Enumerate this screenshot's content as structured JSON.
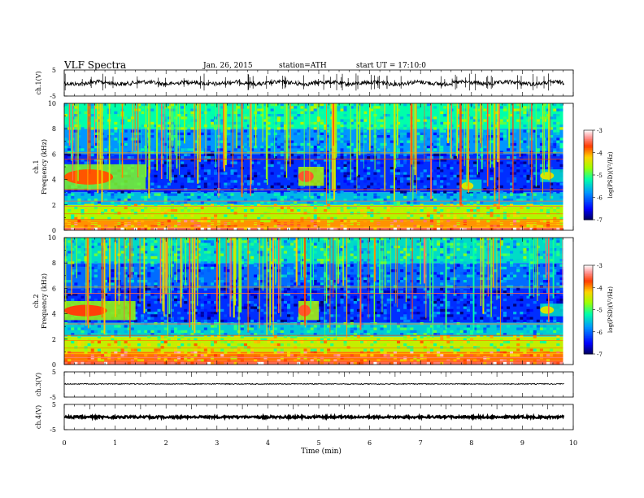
{
  "header": {
    "title": "VLF Spectra",
    "date": "Jan. 26, 2015",
    "station": "station=ATH",
    "start": "start UT = 17:10:0"
  },
  "colorbar": {
    "label": "log(PSD)(V²/Hz)",
    "ticks": [
      "-3",
      "-4",
      "-5",
      "-6",
      "-7"
    ],
    "colors": [
      "#000060",
      "#0000ff",
      "#00a0ff",
      "#00ffa0",
      "#a0ff00",
      "#ffd000",
      "#ff4000",
      "#ff9090",
      "#ffffff"
    ]
  },
  "chart_data": [
    {
      "type": "line",
      "panel": "ch1-waveform",
      "ylabel": "ch.1(V)",
      "yticks": [
        "5",
        "-5"
      ],
      "ylim": [
        -5,
        5
      ],
      "xlim": [
        0,
        10
      ],
      "baseline": 0,
      "line_color": "#000000"
    },
    {
      "type": "heatmap",
      "panel": "ch1-spectrogram",
      "ylabel": "ch.1\nFrequency (kHz)",
      "yticks": [
        "10",
        "8",
        "6",
        "4",
        "2",
        "0"
      ],
      "ylim": [
        0,
        10
      ],
      "xlim": [
        0,
        9.8
      ],
      "colorscale": "log(PSD)",
      "zlim": [
        -7,
        -3
      ],
      "bands": [
        {
          "from_khz": 0,
          "to_khz": 0.2,
          "log_psd": -3.5
        },
        {
          "from_khz": 0.2,
          "to_khz": 0.8,
          "log_psd": -4.0
        },
        {
          "from_khz": 0.8,
          "to_khz": 2.0,
          "log_psd": -4.6
        },
        {
          "from_khz": 2.0,
          "to_khz": 3.0,
          "log_psd": -5.6
        },
        {
          "from_khz": 3.0,
          "to_khz": 6.0,
          "log_psd": -6.3
        },
        {
          "from_khz": 6.0,
          "to_khz": 8.0,
          "log_psd": -5.8
        },
        {
          "from_khz": 8.0,
          "to_khz": 10.0,
          "log_psd": -5.2
        }
      ],
      "emission_patches": [
        {
          "t_start": 0.0,
          "t_end": 1.6,
          "f_low": 3.2,
          "f_high": 5.2,
          "log_psd": -4.4
        },
        {
          "t_start": 4.6,
          "t_end": 5.1,
          "f_low": 3.5,
          "f_high": 5.0,
          "log_psd": -4.2
        },
        {
          "t_start": 7.8,
          "t_end": 8.2,
          "f_low": 3.0,
          "f_high": 4.0,
          "log_psd": -5.0
        },
        {
          "t_start": 9.35,
          "t_end": 9.8,
          "f_low": 3.8,
          "f_high": 4.8,
          "log_psd": -5.0
        }
      ]
    },
    {
      "type": "heatmap",
      "panel": "ch2-spectrogram",
      "ylabel": "ch.2\nFrequency (kHz)",
      "yticks": [
        "10",
        "8",
        "6",
        "4",
        "2",
        "0"
      ],
      "ylim": [
        0,
        10
      ],
      "xlim": [
        0,
        9.8
      ],
      "colorscale": "log(PSD)",
      "zlim": [
        -7,
        -3
      ],
      "bands": [
        {
          "from_khz": 0,
          "to_khz": 0.3,
          "log_psd": -3.5
        },
        {
          "from_khz": 0.3,
          "to_khz": 1.0,
          "log_psd": -3.9
        },
        {
          "from_khz": 1.0,
          "to_khz": 2.2,
          "log_psd": -4.5
        },
        {
          "from_khz": 2.2,
          "to_khz": 3.3,
          "log_psd": -5.5
        },
        {
          "from_khz": 3.3,
          "to_khz": 6.0,
          "log_psd": -6.3
        },
        {
          "from_khz": 6.0,
          "to_khz": 8.0,
          "log_psd": -6.0
        },
        {
          "from_khz": 8.0,
          "to_khz": 10.0,
          "log_psd": -5.4
        }
      ],
      "emission_patches": [
        {
          "t_start": 0.0,
          "t_end": 1.4,
          "f_low": 3.5,
          "f_high": 5.0,
          "log_psd": -4.3
        },
        {
          "t_start": 4.6,
          "t_end": 5.0,
          "f_low": 3.5,
          "f_high": 5.0,
          "log_psd": -4.2
        },
        {
          "t_start": 9.35,
          "t_end": 9.8,
          "f_low": 3.8,
          "f_high": 4.8,
          "log_psd": -5.0
        }
      ]
    },
    {
      "type": "line",
      "panel": "ch3-waveform",
      "ylabel": "ch.3(V)",
      "yticks": [
        "5",
        "-5"
      ],
      "ylim": [
        -5,
        5
      ],
      "xlim": [
        0,
        10
      ],
      "baseline": 0.2,
      "line_color": "#000000"
    },
    {
      "type": "line",
      "panel": "ch4-waveform",
      "ylabel": "ch.4(V)",
      "yticks": [
        "5",
        "-5"
      ],
      "ylim": [
        -5,
        5
      ],
      "xlim": [
        0,
        10
      ],
      "baseline": 0,
      "line_color": "#000000"
    }
  ],
  "xaxis": {
    "label": "Time (min)",
    "ticks": [
      "0",
      "1",
      "2",
      "3",
      "4",
      "5",
      "6",
      "7",
      "8",
      "9",
      "10"
    ],
    "xlim": [
      0,
      10
    ]
  }
}
